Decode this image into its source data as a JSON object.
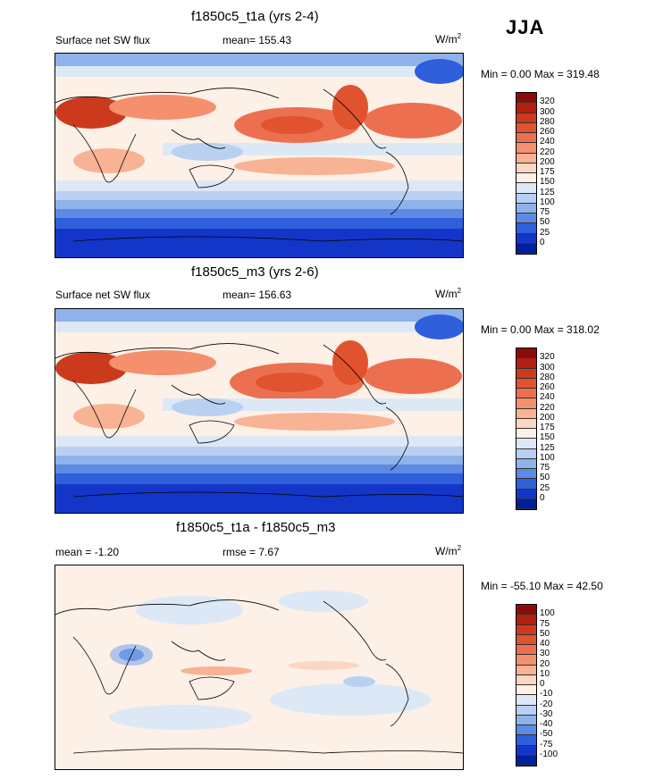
{
  "season": "JJA",
  "panels": [
    {
      "title": "f1850c5_t1a (yrs 2-4)",
      "left_label": "Surface net SW flux",
      "mean_label": "mean= 155.43",
      "units_base": "W/m",
      "units_sup": "2",
      "minmax": "Min =   0.00 Max = 319.48",
      "ticks": [
        "320",
        "300",
        "280",
        "260",
        "240",
        "220",
        "200",
        "175",
        "150",
        "125",
        "100",
        "75",
        "50",
        "25",
        "0"
      ]
    },
    {
      "title": "f1850c5_m3 (yrs 2-6)",
      "left_label": "Surface net SW flux",
      "mean_label": "mean= 156.63",
      "units_base": "W/m",
      "units_sup": "2",
      "minmax": "Min =   0.00 Max = 318.02",
      "ticks": [
        "320",
        "300",
        "280",
        "260",
        "240",
        "220",
        "200",
        "175",
        "150",
        "125",
        "100",
        "75",
        "50",
        "25",
        "0"
      ]
    },
    {
      "title": "f1850c5_t1a - f1850c5_m3",
      "left_label": "mean =  -1.20",
      "mean_label": "rmse =   7.67",
      "units_base": "W/m",
      "units_sup": "2",
      "minmax": "Min = -55.10 Max =  42.50",
      "ticks": [
        "100",
        "75",
        "50",
        "40",
        "30",
        "20",
        "10",
        "0",
        "-10",
        "-20",
        "-30",
        "-40",
        "-50",
        "-75",
        "-100"
      ]
    }
  ],
  "colors": {
    "abs_scale": [
      "#8b0a0a",
      "#b41e0e",
      "#cc3a1e",
      "#e0532e",
      "#ec7050",
      "#f4906e",
      "#f8b294",
      "#fbd6c0",
      "#fdf0e6",
      "#dce8f6",
      "#b9d0f0",
      "#8fb2ea",
      "#5c8ae4",
      "#2f5fdb",
      "#1436c8",
      "#001f9a"
    ],
    "diff_scale": [
      "#8b0a0a",
      "#b41e0e",
      "#cc3a1e",
      "#e0532e",
      "#ec7050",
      "#f4906e",
      "#f8b294",
      "#fbd6c0",
      "#fdf0e6",
      "#dce8f6",
      "#b9d0f0",
      "#8fb2ea",
      "#5c8ae4",
      "#2f5fdb",
      "#1436c8",
      "#001f9a"
    ]
  },
  "chart_data": [
    {
      "type": "heatmap",
      "title": "f1850c5_t1a (yrs 2-4)",
      "variable": "Surface net SW flux",
      "units": "W/m2",
      "mean": 155.43,
      "min": 0.0,
      "max": 319.48,
      "contour_levels": [
        0,
        25,
        50,
        75,
        100,
        125,
        150,
        175,
        200,
        220,
        240,
        260,
        280,
        300,
        320
      ]
    },
    {
      "type": "heatmap",
      "title": "f1850c5_m3 (yrs 2-6)",
      "variable": "Surface net SW flux",
      "units": "W/m2",
      "mean": 156.63,
      "min": 0.0,
      "max": 318.02,
      "contour_levels": [
        0,
        25,
        50,
        75,
        100,
        125,
        150,
        175,
        200,
        220,
        240,
        260,
        280,
        300,
        320
      ]
    },
    {
      "type": "heatmap",
      "title": "f1850c5_t1a - f1850c5_m3",
      "units": "W/m2",
      "mean": -1.2,
      "rmse": 7.67,
      "min": -55.1,
      "max": 42.5,
      "contour_levels": [
        -100,
        -75,
        -50,
        -40,
        -30,
        -20,
        -10,
        0,
        10,
        20,
        30,
        40,
        50,
        75,
        100
      ]
    }
  ]
}
